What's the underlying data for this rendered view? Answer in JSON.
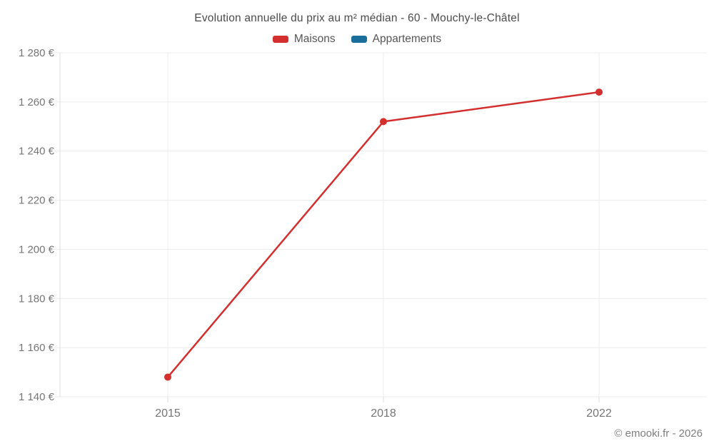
{
  "chart_data": {
    "type": "line",
    "title": "Evolution annuelle du prix au m² médian - 60 - Mouchy-le-Châtel",
    "x": [
      2015,
      2018,
      2022
    ],
    "xtick_labels": [
      "2015",
      "2018",
      "2022"
    ],
    "series": [
      {
        "name": "Maisons",
        "color": "#d32f2f",
        "values": [
          1148,
          1252,
          1264
        ]
      },
      {
        "name": "Appartements",
        "color": "#1a6e9b",
        "values": []
      }
    ],
    "ylim": [
      1140,
      1280
    ],
    "yticks": [
      1140,
      1160,
      1180,
      1200,
      1220,
      1240,
      1260,
      1280
    ],
    "ytick_labels": [
      "1 140 €",
      "1 160 €",
      "1 180 €",
      "1 200 €",
      "1 220 €",
      "1 240 €",
      "1 260 €",
      "1 280 €"
    ],
    "xlabel": "",
    "ylabel": "",
    "unit": "€",
    "grid": true,
    "legend_position": "top"
  },
  "legend": [
    {
      "label": "Maisons",
      "color": "#d32f2f"
    },
    {
      "label": "Appartements",
      "color": "#1a6e9b"
    }
  ],
  "footer": {
    "text": "© emooki.fr - 2026"
  },
  "colors": {
    "maisons": "#d32f2f",
    "appartements": "#1a6e9b",
    "grid": "#ececec",
    "axis": "#dcdcdc",
    "axis_text": "#757575",
    "title_text": "#4b4b4b",
    "footer_text": "#7e7e7e",
    "background": "#ffffff"
  }
}
